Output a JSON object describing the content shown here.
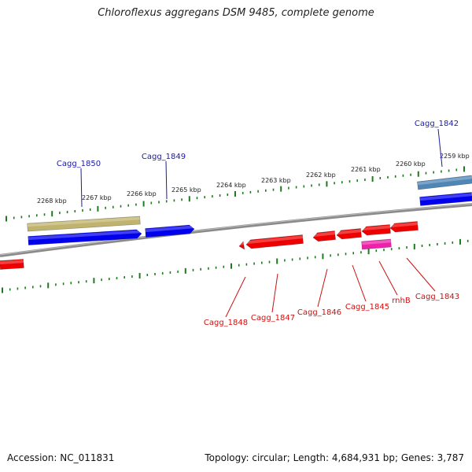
{
  "title": "Chloroflexus aggregans DSM 9485, complete genome",
  "footer": {
    "accession": "Accession: NC_011831",
    "topology": "Topology: circular; Length: 4,684,931 bp; Genes: 3,787"
  },
  "colors": {
    "forward_cds": "#0000ee",
    "reverse_cds": "#ee0000",
    "forward_label": "#1a1aa6",
    "reverse_label": "#cc1111",
    "tick": "#1e7a1e",
    "backbone": "#8a8a8a",
    "gene_olive": "#bfb36e",
    "gene_steel": "#4f86b6",
    "gene_magenta": "#ee22aa"
  },
  "scale_ticks": [
    {
      "label": "2268 kbp"
    },
    {
      "label": "2267 kbp"
    },
    {
      "label": "2266 kbp"
    },
    {
      "label": "2265 kbp"
    },
    {
      "label": "2264 kbp"
    },
    {
      "label": "2263 kbp"
    },
    {
      "label": "2262 kbp"
    },
    {
      "label": "2261 kbp"
    },
    {
      "label": "2260 kbp"
    },
    {
      "label": "2259 kbp"
    }
  ],
  "forward_genes": [
    {
      "name": "Cagg_1850"
    },
    {
      "name": "Cagg_1849"
    },
    {
      "name": "Cagg_1842"
    }
  ],
  "reverse_genes": [
    {
      "name": "Cagg_1848"
    },
    {
      "name": "Cagg_1847"
    },
    {
      "name": "Cagg_1846"
    },
    {
      "name": "Cagg_1845"
    },
    {
      "name": "rnhB"
    },
    {
      "name": "Cagg_1843"
    }
  ]
}
